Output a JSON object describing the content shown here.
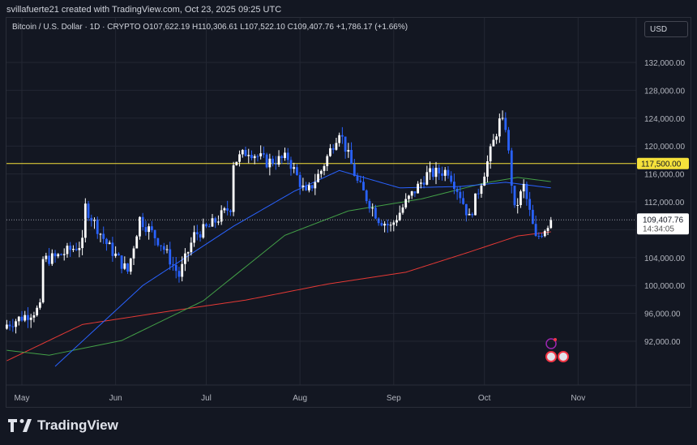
{
  "credit": "svillafuerte21 created with TradingView.com, Oct 23, 2025 09:25 UTC",
  "legend": "Bitcoin / U.S. Dollar · 1D · CRYPTO  O107,622.19  H110,306.61  L107,522.10  C109,407.76  +1,786.17 (+1.66%)",
  "currency": "USD",
  "logo": "TradingView",
  "colors": {
    "up": "#ffffff",
    "down": "#2962ff",
    "ma50": "#2962ff",
    "ma100": "#43a047",
    "ma200": "#e53935",
    "level": "#f5e13b"
  },
  "chart_data": {
    "type": "candlestick",
    "title": "Bitcoin / U.S. Dollar · 1D",
    "y_ticks": [
      132000,
      128000,
      124000,
      120000,
      116000,
      112000,
      104000,
      100000,
      96000,
      92000
    ],
    "y_tick_labels": [
      "132,000.00",
      "128,000.00",
      "124,000.00",
      "120,000.00",
      "116,000.00",
      "112,000.00",
      "104,000.00",
      "100,000.00",
      "96,000.00",
      "92,000.00"
    ],
    "ylim": [
      88000,
      134500
    ],
    "x_ticks": [
      {
        "day": 0,
        "label": "May"
      },
      {
        "day": 31,
        "label": "Jun"
      },
      {
        "day": 61,
        "label": "Jul"
      },
      {
        "day": 92,
        "label": "Aug"
      },
      {
        "day": 123,
        "label": "Sep"
      },
      {
        "day": 153,
        "label": "Oct"
      },
      {
        "day": 184,
        "label": "Nov"
      }
    ],
    "x_note": "day = days since May 1, 2025",
    "close_anchors": [
      [
        -5,
        94400
      ],
      [
        6,
        96700
      ],
      [
        7,
        103700
      ],
      [
        11,
        104000
      ],
      [
        20,
        106000
      ],
      [
        21,
        111300
      ],
      [
        28,
        106000
      ],
      [
        35,
        102000
      ],
      [
        39,
        109600
      ],
      [
        46,
        106000
      ],
      [
        52,
        101400
      ],
      [
        57,
        107200
      ],
      [
        62,
        108400
      ],
      [
        69,
        111300
      ],
      [
        70,
        117700
      ],
      [
        75,
        119400
      ],
      [
        81,
        117700
      ],
      [
        88,
        118300
      ],
      [
        94,
        113000
      ],
      [
        99,
        116500
      ],
      [
        105,
        122300
      ],
      [
        111,
        114800
      ],
      [
        118,
        109600
      ],
      [
        122,
        108400
      ],
      [
        127,
        111900
      ],
      [
        134,
        115900
      ],
      [
        141,
        116500
      ],
      [
        145,
        113000
      ],
      [
        148,
        109600
      ],
      [
        154,
        117700
      ],
      [
        158,
        123500
      ],
      [
        160,
        122900
      ],
      [
        163,
        110700
      ],
      [
        166,
        114200
      ],
      [
        170,
        106600
      ],
      [
        175,
        109407.76
      ]
    ],
    "ma50": [
      [
        11,
        88400
      ],
      [
        40,
        100000
      ],
      [
        70,
        108500
      ],
      [
        90,
        113500
      ],
      [
        105,
        116500
      ],
      [
        125,
        114000
      ],
      [
        145,
        114200
      ],
      [
        160,
        114800
      ],
      [
        175,
        114000
      ]
    ],
    "ma100": [
      [
        -5,
        90700
      ],
      [
        9,
        90000
      ],
      [
        33,
        92100
      ],
      [
        60,
        97800
      ],
      [
        87,
        107200
      ],
      [
        108,
        110700
      ],
      [
        132,
        112400
      ],
      [
        153,
        114700
      ],
      [
        164,
        115500
      ],
      [
        175,
        114900
      ]
    ],
    "ma200": [
      [
        -5,
        89200
      ],
      [
        20,
        94400
      ],
      [
        47,
        96200
      ],
      [
        74,
        97900
      ],
      [
        101,
        100200
      ],
      [
        127,
        101900
      ],
      [
        148,
        104800
      ],
      [
        164,
        107100
      ],
      [
        175,
        107700
      ]
    ],
    "level": {
      "value": 117500,
      "label": "117,500.00"
    },
    "last": {
      "value": 109407.76,
      "label": "109,407.76",
      "countdown": "14:34:05"
    }
  }
}
